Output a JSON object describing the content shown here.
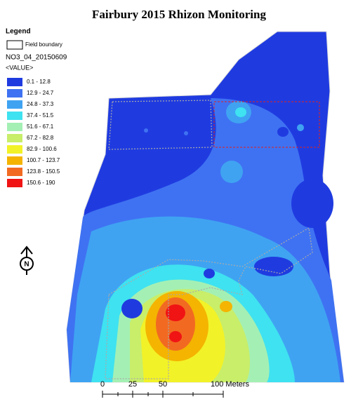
{
  "title": "Fairbury 2015 Rhizon Monitoring",
  "legend": {
    "title": "Legend",
    "boundary": "Field boundary",
    "layer": "NO3_04_20150609",
    "field": "<VALUE>",
    "classes": [
      {
        "label": "0.1 - 12.8",
        "color": "#1f3be0"
      },
      {
        "label": "12.9 - 24.7",
        "color": "#3f72f2"
      },
      {
        "label": "24.8 - 37.3",
        "color": "#3fa3f2"
      },
      {
        "label": "37.4 - 51.5",
        "color": "#3fe2f0"
      },
      {
        "label": "51.6 - 67.1",
        "color": "#a4f0b4"
      },
      {
        "label": "67.2 - 82.8",
        "color": "#c8ee6a"
      },
      {
        "label": "82.9 - 100.6",
        "color": "#f2f228"
      },
      {
        "label": "100.7 - 123.7",
        "color": "#f4b400"
      },
      {
        "label": "123.8 - 150.5",
        "color": "#f26a22"
      },
      {
        "label": "150.6 - 190",
        "color": "#f01414"
      }
    ]
  },
  "north": "N",
  "scale": {
    "labels": [
      "0",
      "25",
      "50",
      "100 Meters"
    ]
  }
}
